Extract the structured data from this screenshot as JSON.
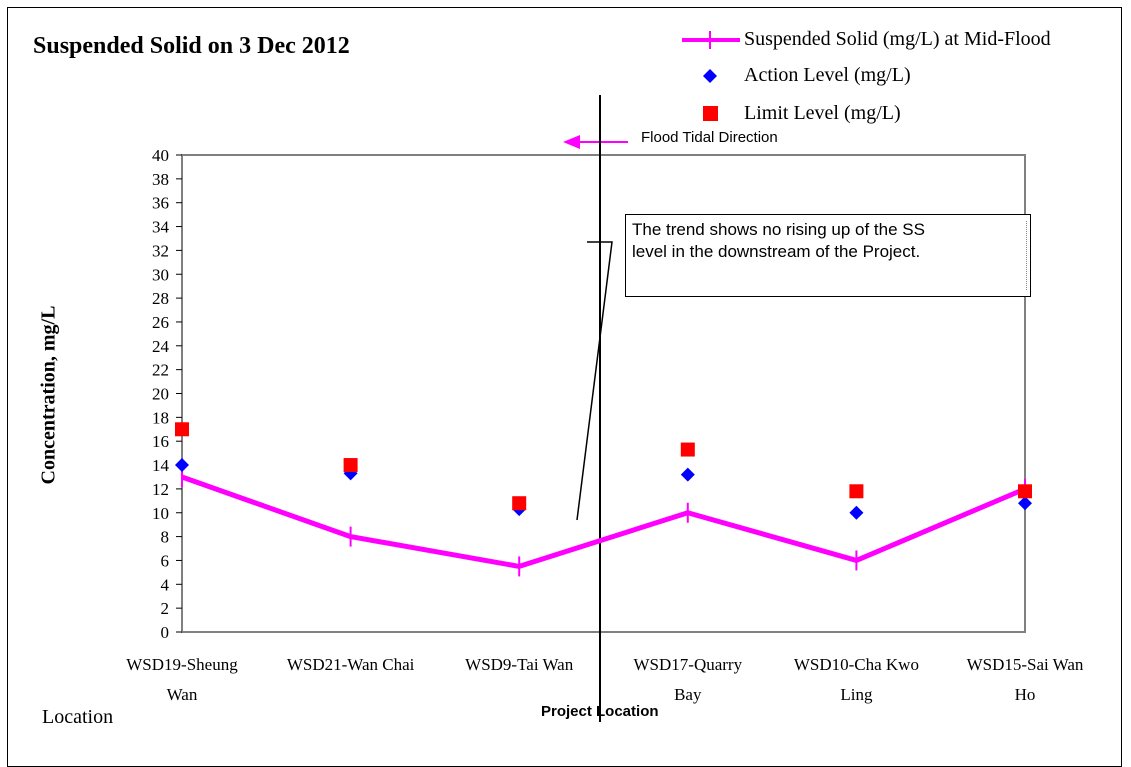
{
  "chart_data": {
    "type": "line",
    "title": "Suspended Solid on 3 Dec 2012",
    "xlabel": "Location",
    "ylabel": "Concentration, mg/L",
    "ylim": [
      0,
      40
    ],
    "yticks": [
      0,
      2,
      4,
      6,
      8,
      10,
      12,
      14,
      16,
      18,
      20,
      22,
      24,
      26,
      28,
      30,
      32,
      34,
      36,
      38,
      40
    ],
    "categories": [
      [
        "WSD19-Sheung",
        "Wan"
      ],
      [
        "WSD21-Wan Chai",
        ""
      ],
      [
        "WSD9-Tai Wan",
        ""
      ],
      [
        "WSD17-Quarry",
        "Bay"
      ],
      [
        "WSD10-Cha Kwo",
        "Ling"
      ],
      [
        "WSD15-Sai Wan",
        "Ho"
      ]
    ],
    "series": [
      {
        "name": "Suspended Solid (mg/L) at Mid-Flood",
        "values": [
          13,
          8,
          5.5,
          10,
          6,
          12
        ],
        "color": "#ff00ff",
        "marker": "plus"
      },
      {
        "name": "Action Level (mg/L)",
        "values": [
          14,
          13.3,
          10.3,
          13.2,
          10,
          10.8
        ],
        "color": "#0000ff",
        "marker": "diamond"
      },
      {
        "name": "Limit Level (mg/L)",
        "values": [
          17,
          14,
          10.8,
          15.3,
          11.8,
          11.8
        ],
        "color": "#ff0000",
        "marker": "square"
      }
    ],
    "legend_position": "top-right",
    "grid": false,
    "annotations": {
      "note": "The trend shows no rising up of the SS level in the downstream of the Project.",
      "note_line1": "The trend shows no rising up of the SS",
      "note_line2": "level in the downstream of the Project.",
      "flood": "Flood Tidal Direction",
      "project": "Project Location"
    }
  }
}
